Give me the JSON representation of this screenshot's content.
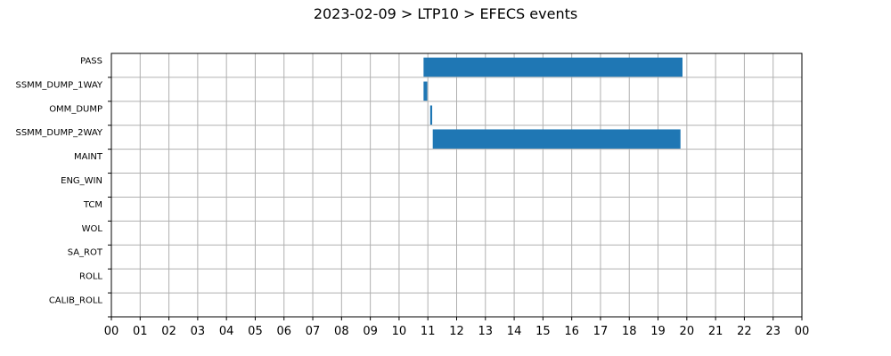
{
  "title": "2023-02-09 > LTP10 > EFECS events",
  "chart_data": {
    "type": "bar",
    "orientation": "horizontal-timeline",
    "title": "2023-02-09 > LTP10 > EFECS events",
    "xlabel": "",
    "ylabel": "",
    "xlim": [
      0,
      24
    ],
    "grid": true,
    "categories": [
      "PASS",
      "SSMM_DUMP_1WAY",
      "OMM_DUMP",
      "SSMM_DUMP_2WAY",
      "MAINT",
      "ENG_WIN",
      "TCM",
      "WOL",
      "SA_ROT",
      "ROLL",
      "CALIB_ROLL"
    ],
    "x_tick_labels": [
      "00",
      "01",
      "02",
      "03",
      "04",
      "05",
      "06",
      "07",
      "08",
      "09",
      "10",
      "11",
      "12",
      "13",
      "14",
      "15",
      "16",
      "17",
      "18",
      "19",
      "20",
      "21",
      "22",
      "23",
      "00"
    ],
    "bar_color": "#1f77b4",
    "events": [
      {
        "category": "PASS",
        "start": 10.85,
        "end": 19.85
      },
      {
        "category": "SSMM_DUMP_1WAY",
        "start": 10.85,
        "end": 10.98
      },
      {
        "category": "OMM_DUMP",
        "start": 11.08,
        "end": 11.15
      },
      {
        "category": "SSMM_DUMP_2WAY",
        "start": 11.17,
        "end": 19.78
      }
    ]
  }
}
